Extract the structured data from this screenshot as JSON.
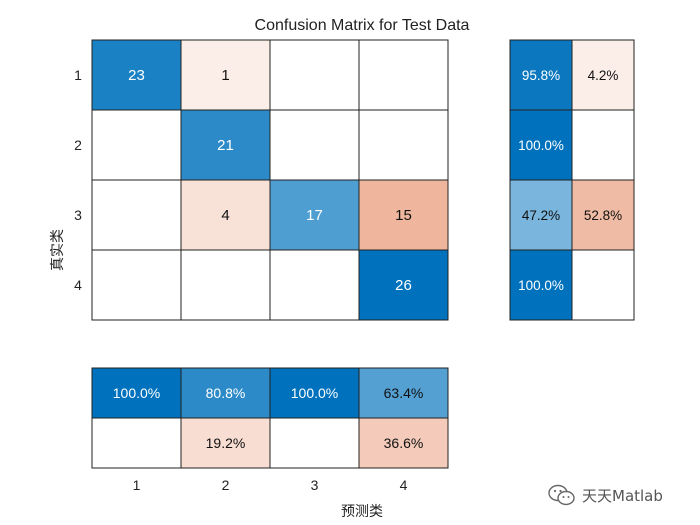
{
  "chart_data": {
    "type": "heatmap",
    "title": "Confusion Matrix for Test Data",
    "ylabel": "真实类",
    "xlabel": "预测类",
    "classes": [
      "1",
      "2",
      "3",
      "4"
    ],
    "matrix": [
      [
        23,
        1,
        0,
        0
      ],
      [
        0,
        21,
        0,
        0
      ],
      [
        0,
        4,
        17,
        15
      ],
      [
        0,
        0,
        0,
        26
      ]
    ],
    "row_summary": {
      "correct": [
        "95.8%",
        "100.0%",
        "47.2%",
        "100.0%"
      ],
      "incorrect": [
        "4.2%",
        "",
        "52.8%",
        ""
      ]
    },
    "column_summary": {
      "correct": [
        "100.0%",
        "80.8%",
        "100.0%",
        "63.4%"
      ],
      "incorrect": [
        "",
        "19.2%",
        "",
        "36.6%"
      ]
    },
    "colors": {
      "correct_high": "#0072BD",
      "incorrect_high": "#D95319",
      "grid_line": "#222222"
    }
  },
  "watermark": {
    "text": "天天Matlab",
    "icon": "wechat-icon"
  }
}
